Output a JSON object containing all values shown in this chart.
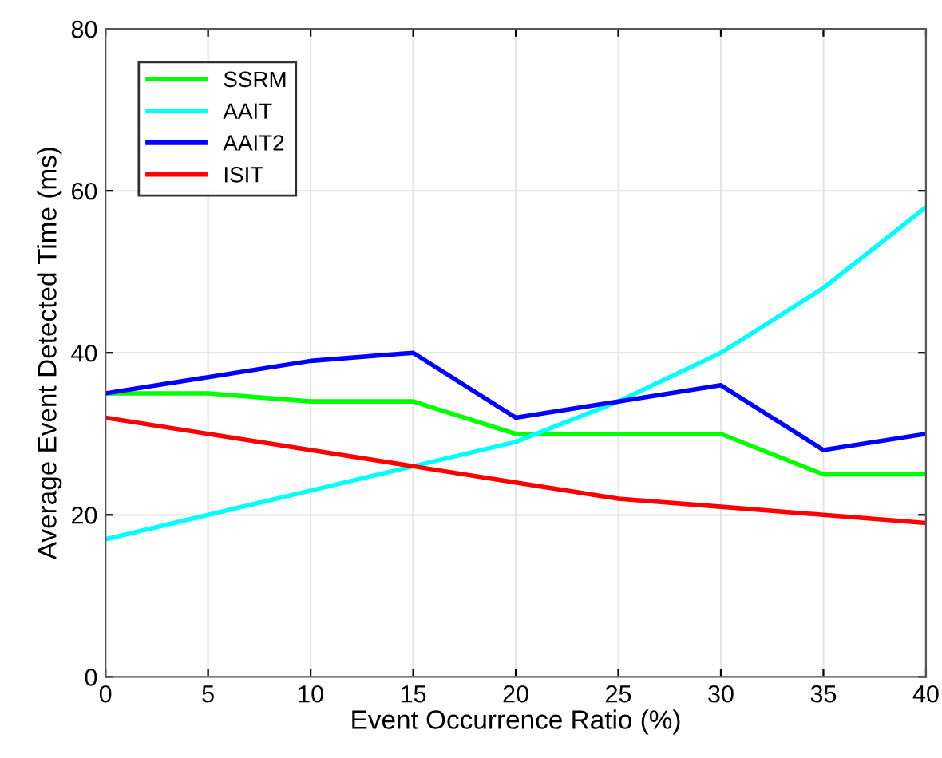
{
  "chart_data": {
    "type": "line",
    "xlabel": "Event Occurrence Ratio (%)",
    "ylabel": "Average Event Detected Time (ms)",
    "x": [
      0,
      5,
      10,
      15,
      20,
      25,
      30,
      35,
      40
    ],
    "series": [
      {
        "name": "SSRM",
        "color": "#00ff00",
        "values": [
          35,
          35,
          34,
          34,
          30,
          30,
          30,
          25,
          25
        ]
      },
      {
        "name": "AAIT",
        "color": "#00ffff",
        "values": [
          17,
          20,
          23,
          26,
          29,
          34,
          40,
          48,
          58
        ]
      },
      {
        "name": "AAIT2",
        "color": "#0000ff",
        "values": [
          35,
          37,
          39,
          40,
          32,
          34,
          36,
          28,
          30
        ]
      },
      {
        "name": "ISIT",
        "color": "#ff0000",
        "values": [
          32,
          30,
          28,
          26,
          24,
          22,
          21,
          20,
          19
        ]
      }
    ],
    "xlim": [
      0,
      40
    ],
    "ylim": [
      0,
      80
    ],
    "xticks": [
      0,
      5,
      10,
      15,
      20,
      25,
      30,
      35,
      40
    ],
    "yticks": [
      0,
      20,
      40,
      60,
      80
    ],
    "grid": true,
    "legend": "top left",
    "marker": "none",
    "line_style": "solid"
  }
}
